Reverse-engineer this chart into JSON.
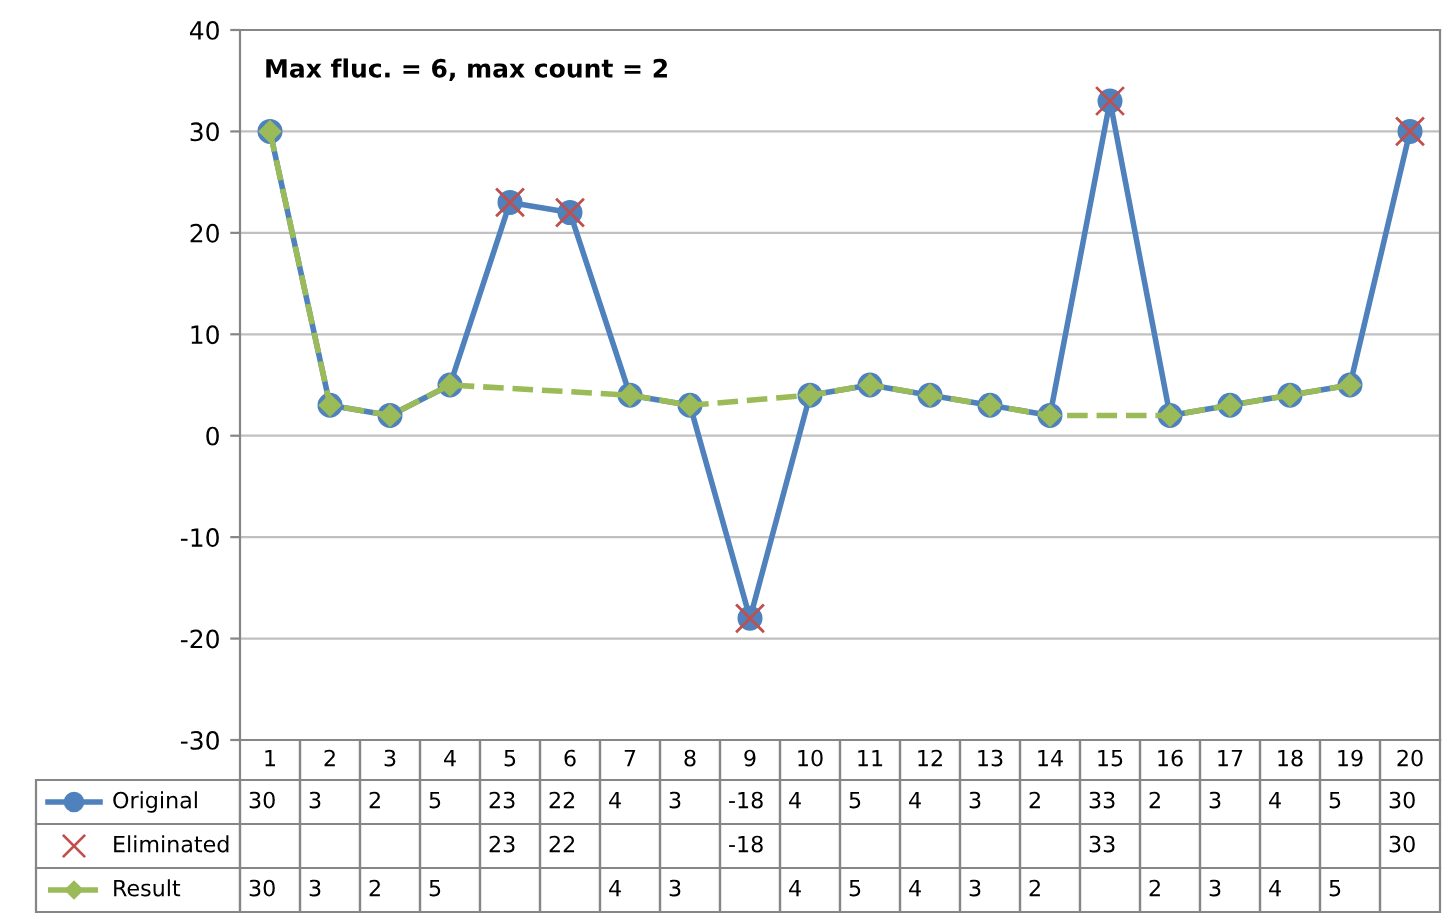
{
  "chart_data": {
    "type": "line",
    "categories": [
      "1",
      "2",
      "3",
      "4",
      "5",
      "6",
      "7",
      "8",
      "9",
      "10",
      "11",
      "12",
      "13",
      "14",
      "15",
      "16",
      "17",
      "18",
      "19",
      "20"
    ],
    "series": [
      {
        "name": "Original",
        "color": "#4f81bd",
        "marker": "circle",
        "line_style": "solid",
        "values": [
          30,
          3,
          2,
          5,
          23,
          22,
          4,
          3,
          -18,
          4,
          5,
          4,
          3,
          2,
          33,
          2,
          3,
          4,
          5,
          30
        ]
      },
      {
        "name": "Eliminated",
        "type": "scatter",
        "color": "#c0504d",
        "marker": "cross",
        "values": [
          null,
          null,
          null,
          null,
          23,
          22,
          null,
          null,
          -18,
          null,
          null,
          null,
          null,
          null,
          33,
          null,
          null,
          null,
          null,
          30
        ]
      },
      {
        "name": "Result",
        "color": "#9bbb59",
        "marker": "diamond",
        "line_style": "dashed",
        "values": [
          30,
          3,
          2,
          5,
          null,
          null,
          4,
          3,
          null,
          4,
          5,
          4,
          3,
          2,
          null,
          2,
          3,
          4,
          5,
          null
        ]
      }
    ],
    "ylim": [
      -30,
      40
    ],
    "yticks": [
      -30,
      -20,
      -10,
      0,
      10,
      20,
      30,
      40
    ],
    "grid": "y",
    "data_labels": true,
    "legend": "bottom left",
    "annotations": [
      "Max fluc. = 6, max count = 2"
    ]
  }
}
